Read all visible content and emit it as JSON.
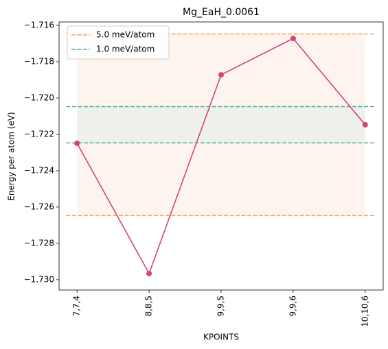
{
  "chart_data": {
    "type": "line",
    "title": "Mg_EaH_0.0061",
    "xlabel": "KPOINTS",
    "ylabel": "Energy per atom (eV)",
    "categories": [
      "7,7,4",
      "8,8,5",
      "9,9,5",
      "9,9,6",
      "10,10,6"
    ],
    "series": [
      {
        "color": "#d4427a",
        "values": [
          -1.72249,
          -1.72966,
          -1.71872,
          -1.71672,
          -1.72147
        ]
      }
    ],
    "bands": [
      {
        "name": "5.0 meV/atom",
        "color": "#f4a261",
        "fill": "#fdf4ee",
        "values": [
          -1.71647,
          -1.72647
        ]
      },
      {
        "name": "1.0 meV/atom",
        "color": "#4ea99a",
        "fill": "#eef0ea",
        "values": [
          -1.72047,
          -1.72247
        ]
      }
    ],
    "ylim": [
      -1.73057,
      -1.71581
    ],
    "yticks": [
      {
        "value": -1.716,
        "label": "−1.716"
      },
      {
        "value": -1.718,
        "label": "−1.718"
      },
      {
        "value": -1.72,
        "label": "−1.720"
      },
      {
        "value": -1.722,
        "label": "−1.722"
      },
      {
        "value": -1.724,
        "label": "−1.724"
      },
      {
        "value": -1.726,
        "label": "−1.726"
      },
      {
        "value": -1.728,
        "label": "−1.728"
      },
      {
        "value": -1.73,
        "label": "−1.730"
      }
    ],
    "legend": "upper left"
  }
}
